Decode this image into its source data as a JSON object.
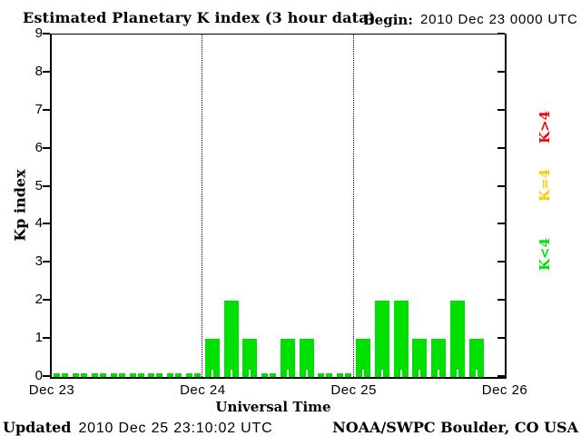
{
  "title": "Estimated Planetary K index (3 hour data)",
  "begin": {
    "label": "Begin:",
    "value": "2010 Dec 23 0000 UTC"
  },
  "footer": {
    "updated_label": "Updated",
    "updated_value": "2010 Dec 25 23:10:02 UTC",
    "credit": "NOAA/SWPC Boulder, CO USA"
  },
  "legend": [
    {
      "label": "K>4",
      "color": "#ff0000"
    },
    {
      "label": "K=4",
      "color": "#ffcc00"
    },
    {
      "label": "K<4",
      "color": "#00e000"
    }
  ],
  "chart_data": {
    "type": "bar",
    "title": "Estimated Planetary K index (3 hour data)",
    "xlabel": "Universal Time",
    "ylabel": "Kp index",
    "ylim": [
      0,
      9
    ],
    "y_ticks": [
      0,
      1,
      2,
      3,
      4,
      5,
      6,
      7,
      8,
      9
    ],
    "x_tick_labels": [
      "Dec 23",
      "Dec 24",
      "Dec 25",
      "Dec 26"
    ],
    "hours_per_bar": 3,
    "bars_per_day": 8,
    "values": [
      0,
      0,
      0,
      0,
      0,
      0,
      0,
      0,
      1,
      2,
      1,
      0,
      1,
      1,
      0,
      0,
      1,
      2,
      2,
      1,
      1,
      2,
      1
    ],
    "bar_color_rules": {
      "lt4": "#00e000",
      "eq4": "#ffcc00",
      "gt4": "#ff0000"
    },
    "grid": "dotted vertical lines at day boundaries",
    "legend_position": "right-rotated",
    "axis_color": "#000000",
    "background_color": "#ffffff"
  }
}
